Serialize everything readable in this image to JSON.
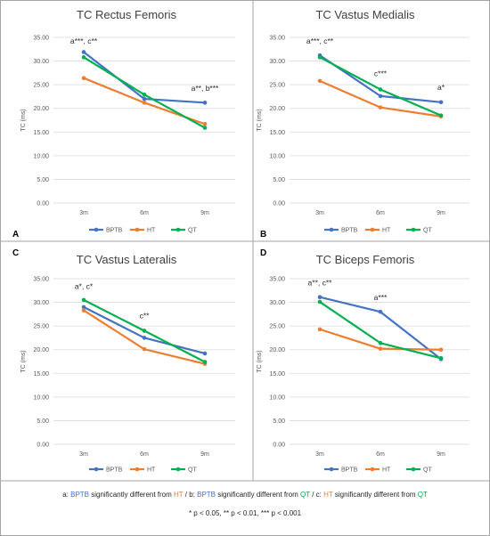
{
  "colors": {
    "BPTB": "#4472c4",
    "HT": "#ed7d31",
    "QT": "#00b050"
  },
  "chart_data": [
    {
      "type": "line",
      "panel": "A",
      "title": "TC Rectus Femoris",
      "ylabel": "TC (ms)",
      "ylim": [
        0,
        35
      ],
      "yticks": [
        "0.00",
        "5.00",
        "10.00",
        "15.00",
        "20.00",
        "25.00",
        "30.00",
        "35.00"
      ],
      "categories": [
        "3m",
        "6m",
        "9m"
      ],
      "series": [
        {
          "name": "BPTB",
          "values": [
            31.9,
            22.0,
            21.2
          ]
        },
        {
          "name": "HT",
          "values": [
            26.4,
            21.2,
            16.7
          ]
        },
        {
          "name": "QT",
          "values": [
            30.8,
            22.9,
            15.9
          ]
        }
      ],
      "annotations": [
        {
          "text": "a***, c**",
          "category": "3m",
          "y": 33.7
        },
        {
          "text": "a**, b***",
          "category": "9m",
          "y": 23.7
        }
      ],
      "grid": true,
      "legend": "bottom"
    },
    {
      "type": "line",
      "panel": "B",
      "title": "TC Vastus Medialis",
      "ylabel": "TC (ms)",
      "ylim": [
        0,
        35
      ],
      "yticks": [
        "0.00",
        "5.00",
        "10.00",
        "15.00",
        "20.00",
        "25.00",
        "30.00",
        "35.00"
      ],
      "categories": [
        "3m",
        "6m",
        "9m"
      ],
      "series": [
        {
          "name": "BPTB",
          "values": [
            31.2,
            22.6,
            21.3
          ]
        },
        {
          "name": "HT",
          "values": [
            25.8,
            20.2,
            18.3
          ]
        },
        {
          "name": "QT",
          "values": [
            30.8,
            24.0,
            18.5
          ]
        }
      ],
      "annotations": [
        {
          "text": "a***, c**",
          "category": "3m",
          "y": 33.7
        },
        {
          "text": "c***",
          "category": "6m",
          "y": 26.8
        },
        {
          "text": "a*",
          "category": "9m",
          "y": 23.9
        }
      ],
      "grid": true,
      "legend": "bottom"
    },
    {
      "type": "line",
      "panel": "C",
      "title": "TC Vastus Lateralis",
      "ylabel": "TC (ms)",
      "ylim": [
        0,
        35
      ],
      "yticks": [
        "0.00",
        "5.00",
        "10.00",
        "15.00",
        "20.00",
        "25.00",
        "30.00",
        "35.00"
      ],
      "categories": [
        "3m",
        "6m",
        "9m"
      ],
      "series": [
        {
          "name": "BPTB",
          "values": [
            29.0,
            22.5,
            19.2
          ]
        },
        {
          "name": "HT",
          "values": [
            28.3,
            20.1,
            17.0
          ]
        },
        {
          "name": "QT",
          "values": [
            30.5,
            24.0,
            17.4
          ]
        }
      ],
      "annotations": [
        {
          "text": "a*, c*",
          "category": "3m",
          "y": 32.8
        },
        {
          "text": "c**",
          "category": "6m",
          "y": 26.6
        }
      ],
      "grid": true,
      "legend": "bottom"
    },
    {
      "type": "line",
      "panel": "D",
      "title": "TC Biceps Femoris",
      "ylabel": "TC (ms)",
      "ylim": [
        0,
        35
      ],
      "yticks": [
        "0.00",
        "5.00",
        "10.00",
        "15.00",
        "20.00",
        "25.00",
        "30.00",
        "35.00"
      ],
      "categories": [
        "3m",
        "6m",
        "9m"
      ],
      "series": [
        {
          "name": "BPTB",
          "values": [
            31.1,
            28.0,
            18.0
          ]
        },
        {
          "name": "HT",
          "values": [
            24.3,
            20.2,
            20.0
          ]
        },
        {
          "name": "QT",
          "values": [
            30.1,
            21.4,
            18.2
          ]
        }
      ],
      "annotations": [
        {
          "text": "a**, c**",
          "category": "3m",
          "y": 33.6
        },
        {
          "text": "a***",
          "category": "6m",
          "y": 30.5
        }
      ],
      "grid": true,
      "legend": "bottom"
    }
  ],
  "footnote": {
    "parts": [
      {
        "text": "a: ",
        "color": "#262626"
      },
      {
        "text": "BPTB",
        "color": "#4472c4"
      },
      {
        "text": " significantly different from ",
        "color": "#262626"
      },
      {
        "text": "HT",
        "color": "#ed7d31"
      },
      {
        "text": " / b: ",
        "color": "#262626"
      },
      {
        "text": "BPTB",
        "color": "#4472c4"
      },
      {
        "text": " significantly different from ",
        "color": "#262626"
      },
      {
        "text": "QT",
        "color": "#00b050"
      },
      {
        "text": " / c: ",
        "color": "#262626"
      },
      {
        "text": "HT",
        "color": "#ed7d31"
      },
      {
        "text": " significantly different from ",
        "color": "#262626"
      },
      {
        "text": "QT",
        "color": "#00b050"
      }
    ],
    "significance": "* p < 0.05, ** p < 0.01, *** p < 0.001"
  }
}
